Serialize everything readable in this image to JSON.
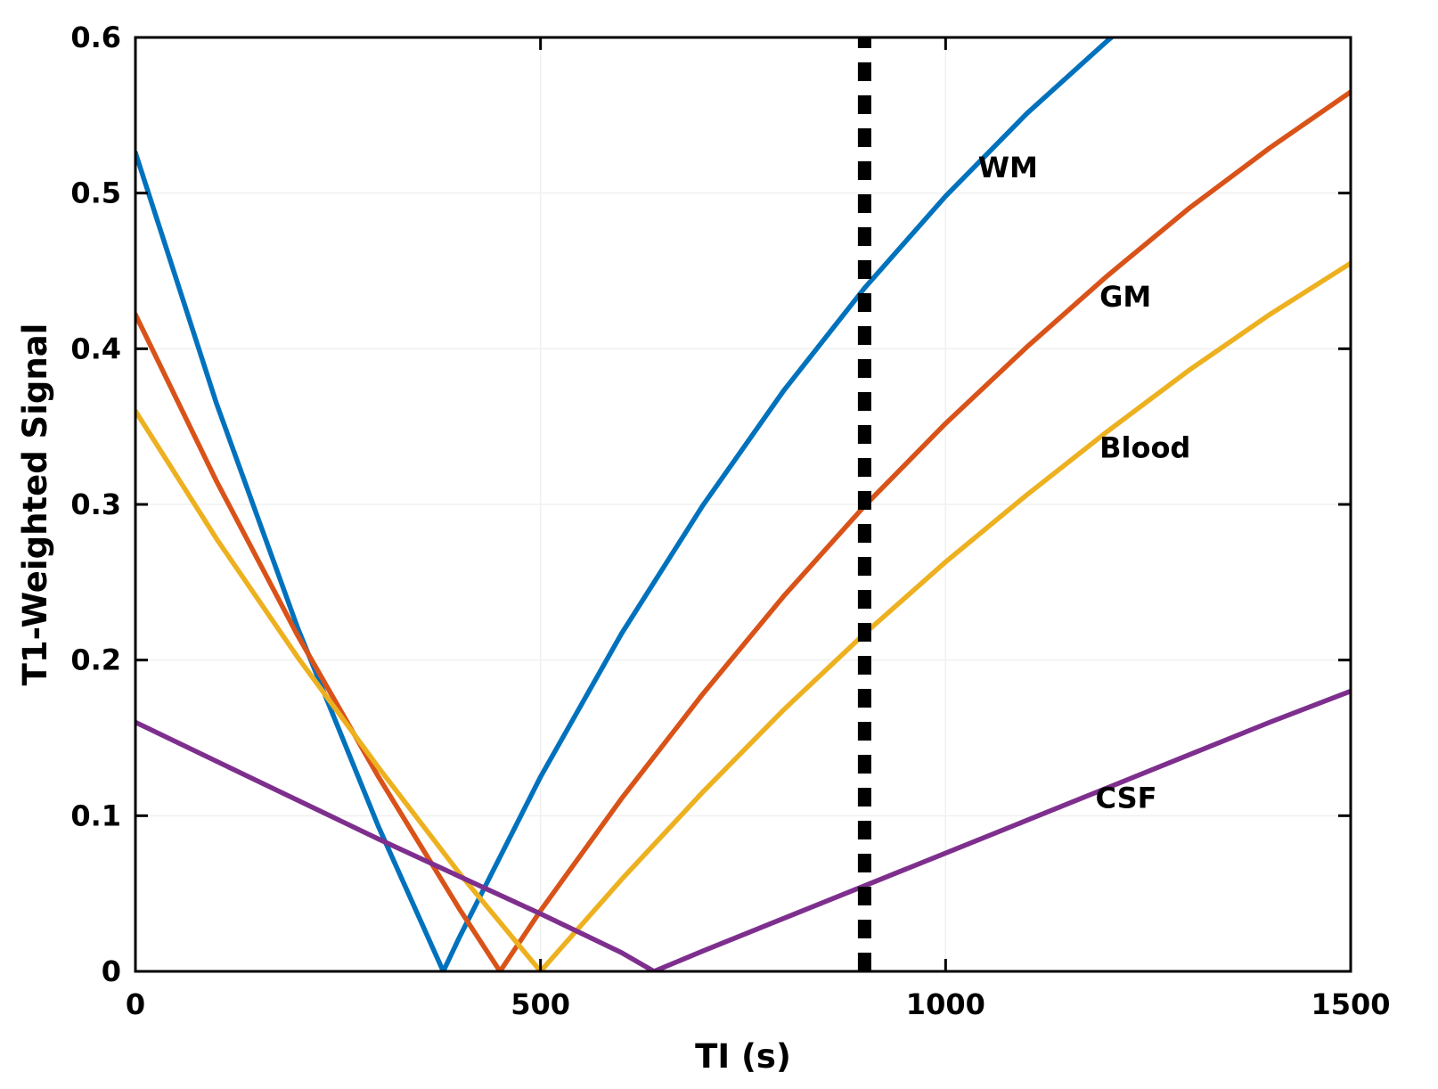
{
  "chart_data": {
    "type": "line",
    "title": "",
    "xlabel": "TI (s)",
    "ylabel": "T1-Weighted Signal",
    "xlim": [
      0,
      1500
    ],
    "ylim": [
      0,
      0.6
    ],
    "xticks": [
      0,
      500,
      1000,
      1500
    ],
    "yticks": [
      0,
      0.1,
      0.2,
      0.3,
      0.4,
      0.5,
      0.6
    ],
    "grid": true,
    "legend_position": "inline-labels",
    "background_color": "#ffffff",
    "axis_color": "#000000",
    "grid_color": "#f0f0f0",
    "series": [
      {
        "name": "WM",
        "color": "#0072BD",
        "null_point": 380,
        "x": [
          0,
          100,
          200,
          300,
          380,
          400,
          500,
          600,
          700,
          800,
          900,
          1000,
          1100,
          1200,
          1250
        ],
        "y": [
          0.526,
          0.365,
          0.221,
          0.093,
          0,
          0.022,
          0.125,
          0.217,
          0.299,
          0.373,
          0.439,
          0.498,
          0.551,
          0.598,
          0.62
        ],
        "label_pos": [
          1040,
          0.51
        ]
      },
      {
        "name": "GM",
        "color": "#D95319",
        "null_point": 450,
        "x": [
          0,
          100,
          200,
          300,
          400,
          450,
          500,
          600,
          700,
          800,
          900,
          1000,
          1100,
          1200,
          1300,
          1400,
          1500
        ],
        "y": [
          0.422,
          0.315,
          0.216,
          0.125,
          0.04,
          0,
          0.039,
          0.111,
          0.178,
          0.241,
          0.299,
          0.352,
          0.401,
          0.447,
          0.49,
          0.529,
          0.565
        ],
        "label_pos": [
          1190,
          0.427
        ]
      },
      {
        "name": "Blood",
        "color": "#EDB120",
        "null_point": 500,
        "x": [
          0,
          100,
          200,
          300,
          400,
          500,
          600,
          700,
          800,
          900,
          1000,
          1100,
          1200,
          1300,
          1400,
          1500
        ],
        "y": [
          0.36,
          0.278,
          0.202,
          0.131,
          0.063,
          0,
          0.059,
          0.115,
          0.168,
          0.217,
          0.263,
          0.306,
          0.347,
          0.386,
          0.422,
          0.455
        ],
        "label_pos": [
          1190,
          0.33
        ]
      },
      {
        "name": "CSF",
        "color": "#7E2F8E",
        "null_point": 640,
        "x": [
          0,
          100,
          200,
          300,
          400,
          500,
          600,
          640,
          700,
          800,
          900,
          1000,
          1100,
          1200,
          1300,
          1400,
          1500
        ],
        "y": [
          0.16,
          0.135,
          0.11,
          0.085,
          0.061,
          0.037,
          0.012,
          0,
          0.013,
          0.034,
          0.055,
          0.076,
          0.097,
          0.118,
          0.139,
          0.16,
          0.18
        ],
        "label_pos": [
          1185,
          0.105
        ]
      }
    ],
    "vline": {
      "x": 900,
      "color": "#000000",
      "style": "dashed",
      "y_from": 0,
      "y_to": 0.6
    }
  }
}
